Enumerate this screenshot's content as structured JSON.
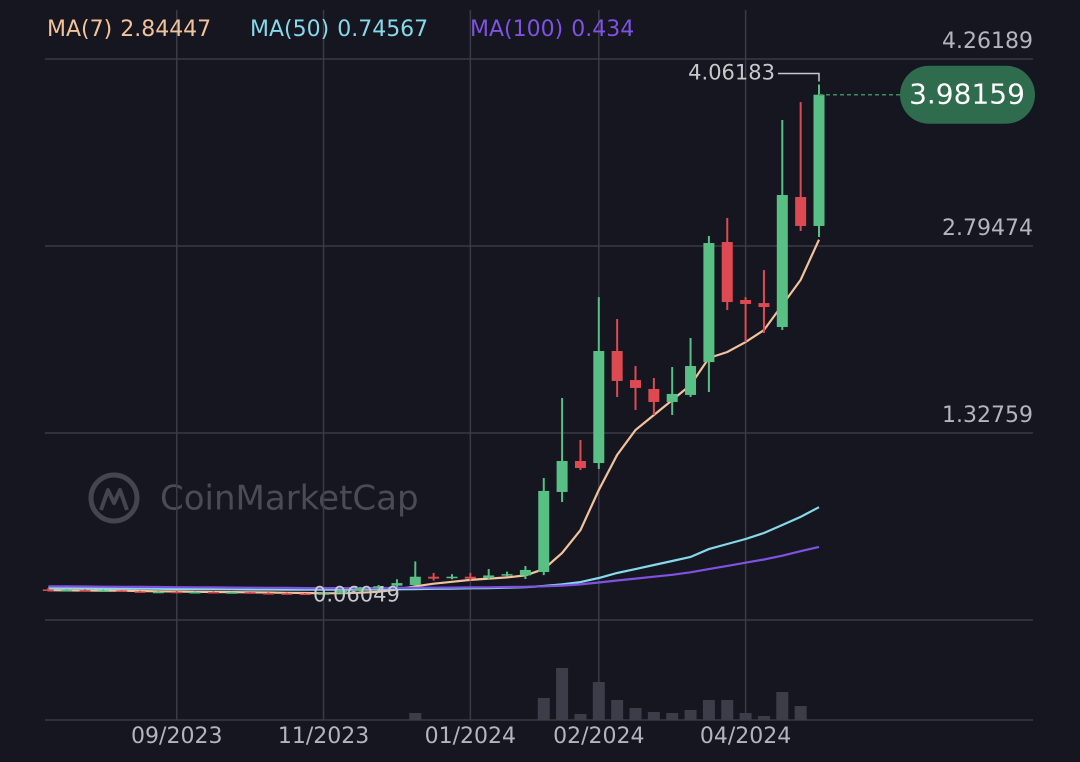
{
  "chart_data": {
    "type": "candlestick",
    "watermark": "CoinMarketCap",
    "categories": [
      null,
      null,
      null,
      null,
      null,
      null,
      null,
      "09/2023",
      null,
      null,
      null,
      null,
      null,
      null,
      null,
      "11/2023",
      null,
      null,
      null,
      null,
      null,
      null,
      null,
      "01/2024",
      null,
      null,
      null,
      null,
      null,
      null,
      "02/2024",
      null,
      null,
      null,
      null,
      null,
      null,
      null,
      "04/2024",
      null,
      null,
      null,
      null
    ],
    "open": [
      0.1,
      0.09,
      0.095,
      0.09,
      0.092,
      0.085,
      0.08,
      0.082,
      0.078,
      0.08,
      0.075,
      0.078,
      0.072,
      0.07,
      0.068,
      0.066,
      0.07,
      0.09,
      0.11,
      0.13,
      0.135,
      0.2,
      0.19,
      0.2,
      0.19,
      0.21,
      0.21,
      0.237,
      0.865,
      1.108,
      1.092,
      1.971,
      1.743,
      1.673,
      1.571,
      1.626,
      1.884,
      2.826,
      2.371,
      2.347,
      2.159,
      3.179,
      2.952
    ],
    "high": [
      0.11,
      0.1,
      0.1,
      0.1,
      0.095,
      0.09,
      0.088,
      0.088,
      0.085,
      0.085,
      0.083,
      0.08,
      0.078,
      0.075,
      0.072,
      0.075,
      0.1,
      0.12,
      0.135,
      0.18,
      0.32,
      0.23,
      0.22,
      0.23,
      0.26,
      0.24,
      0.284,
      0.975,
      1.602,
      1.273,
      2.394,
      2.222,
      1.853,
      1.759,
      1.845,
      2.073,
      2.873,
      3.014,
      2.394,
      2.606,
      3.783,
      3.924,
      4.06183
    ],
    "low": [
      0.085,
      0.085,
      0.085,
      0.085,
      0.08,
      0.075,
      0.075,
      0.072,
      0.07,
      0.07,
      0.07,
      0.066,
      0.065,
      0.063,
      0.061,
      0.06049,
      0.065,
      0.085,
      0.1,
      0.12,
      0.13,
      0.17,
      0.18,
      0.17,
      0.18,
      0.2,
      0.182,
      0.213,
      0.786,
      1.037,
      1.045,
      1.61,
      1.508,
      1.469,
      1.469,
      1.61,
      1.649,
      2.293,
      2.041,
      2.112,
      2.136,
      2.912,
      2.865
    ],
    "close": [
      0.09,
      0.095,
      0.09,
      0.092,
      0.085,
      0.08,
      0.082,
      0.078,
      0.08,
      0.075,
      0.078,
      0.072,
      0.07,
      0.068,
      0.066,
      0.07,
      0.09,
      0.11,
      0.125,
      0.15,
      0.2,
      0.185,
      0.2,
      0.185,
      0.21,
      0.22,
      0.253,
      0.873,
      1.108,
      1.053,
      1.971,
      1.736,
      1.681,
      1.571,
      1.634,
      1.853,
      2.818,
      2.355,
      2.34,
      2.316,
      3.195,
      2.952,
      3.98159
    ],
    "volume": [
      0,
      0,
      0,
      0,
      0,
      0,
      0,
      0,
      0,
      0,
      0,
      0,
      0,
      0,
      0,
      0,
      0,
      0,
      0,
      0,
      7,
      0,
      0,
      0,
      0,
      0,
      0,
      22,
      52,
      6,
      38,
      20,
      12,
      8,
      7,
      10,
      20,
      20,
      7,
      4,
      28,
      14,
      0
    ],
    "up_color": "#59c085",
    "down_color": "#de4a51",
    "series": [
      {
        "name": "MA(7)",
        "color": "#f2c29c",
        "values": [
          0.095,
          0.093,
          0.092,
          0.091,
          0.09,
          0.088,
          0.086,
          0.084,
          0.082,
          0.08,
          0.079,
          0.078,
          0.076,
          0.074,
          0.072,
          0.07,
          0.071,
          0.075,
          0.082,
          0.1,
          0.125,
          0.145,
          0.16,
          0.175,
          0.185,
          0.195,
          0.21,
          0.26,
          0.386,
          0.566,
          0.88,
          1.155,
          1.351,
          1.469,
          1.586,
          1.704,
          1.916,
          1.963,
          2.041,
          2.136,
          2.332,
          2.528,
          2.84447
        ]
      },
      {
        "name": "MA(50)",
        "color": "#86d8ea",
        "values": [
          0.11,
          0.11,
          0.109,
          0.108,
          0.107,
          0.106,
          0.105,
          0.104,
          0.103,
          0.102,
          0.101,
          0.1,
          0.1,
          0.099,
          0.098,
          0.098,
          0.098,
          0.099,
          0.1,
          0.101,
          0.103,
          0.105,
          0.107,
          0.109,
          0.111,
          0.114,
          0.118,
          0.127,
          0.14,
          0.158,
          0.19,
          0.229,
          0.26,
          0.292,
          0.323,
          0.355,
          0.417,
          0.457,
          0.496,
          0.543,
          0.606,
          0.669,
          0.74567
        ]
      },
      {
        "name": "MA(100)",
        "color": "#7f52e2",
        "values": [
          0.125,
          0.124,
          0.123,
          0.122,
          0.121,
          0.12,
          0.119,
          0.118,
          0.117,
          0.116,
          0.115,
          0.114,
          0.113,
          0.112,
          0.111,
          0.111,
          0.111,
          0.111,
          0.111,
          0.112,
          0.113,
          0.114,
          0.115,
          0.116,
          0.117,
          0.119,
          0.121,
          0.125,
          0.13,
          0.14,
          0.155,
          0.17,
          0.185,
          0.2,
          0.215,
          0.235,
          0.26,
          0.285,
          0.31,
          0.335,
          0.365,
          0.4,
          0.434
        ]
      }
    ],
    "ylim": [
      -0.13956,
      4.26189
    ],
    "yticks": [
      1.32759,
      2.79474,
      4.26189
    ],
    "grid": true
  }
}
